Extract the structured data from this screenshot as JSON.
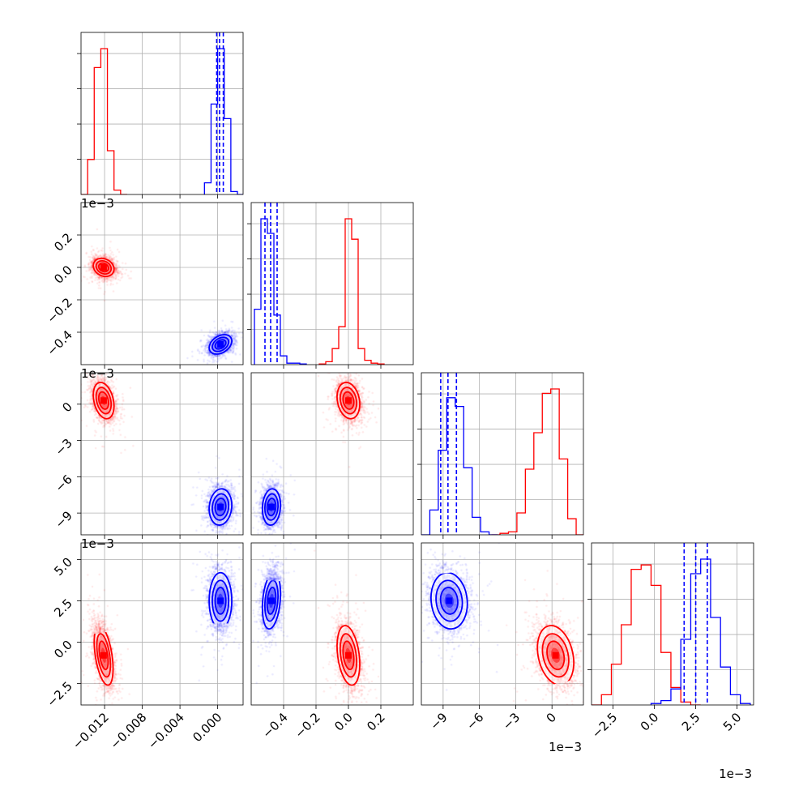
{
  "chart_data": {
    "type": "corner",
    "colors": {
      "run_a": "#ff0000",
      "run_b": "#0000ff"
    },
    "parameters": [
      {
        "range": [
          -0.0145,
          0.0027
        ],
        "ticks": [
          -0.012,
          -0.008,
          -0.004,
          0.0
        ],
        "tick_labels": [
          "−0.012",
          "−0.008",
          "−0.004",
          "0.000"
        ],
        "offset_label": ""
      },
      {
        "range": [
          -0.6,
          0.4
        ],
        "ticks": [
          -0.4,
          -0.2,
          0.0,
          0.2
        ],
        "tick_labels": [
          "−0.4",
          "−0.2",
          "0.0",
          "0.2"
        ],
        "offset_label": "1e−3"
      },
      {
        "range": [
          -10.8,
          2.6
        ],
        "ticks": [
          -9,
          -6,
          -3,
          0
        ],
        "tick_labels": [
          "−9",
          "−6",
          "−3",
          "0"
        ],
        "offset_label": "1e−3"
      },
      {
        "range": [
          -3.8,
          6.0
        ],
        "ticks": [
          -2.5,
          0.0,
          2.5,
          5.0
        ],
        "tick_labels": [
          "−2.5",
          "0.0",
          "2.5",
          "5.0"
        ],
        "offset_label": "1e−3"
      }
    ],
    "histograms": [
      {
        "series": [
          {
            "color": "#ff0000",
            "edges": [
              -0.0145,
              -0.0138,
              -0.0131,
              -0.0124,
              -0.0117,
              -0.011,
              -0.0103,
              -0.0096
            ],
            "counts": [
              0.0,
              0.24,
              0.87,
              1.0,
              0.3,
              0.03,
              0.0
            ]
          },
          {
            "color": "#0000ff",
            "edges": [
              -0.0014,
              -0.0007,
              0.0,
              0.0007,
              0.0014,
              0.0021,
              0.0028
            ],
            "counts": [
              0.08,
              0.62,
              1.0,
              0.52,
              0.02,
              0.0
            ]
          }
        ],
        "quantiles": {
          "color": "#0000ff",
          "values": [
            -0.0001,
            0.0002,
            0.0006
          ]
        }
      },
      {
        "series": [
          {
            "color": "#ff0000",
            "edges": [
              -0.18,
              -0.14,
              -0.1,
              -0.06,
              -0.02,
              0.02,
              0.06,
              0.1,
              0.14,
              0.18,
              0.22
            ],
            "counts": [
              0.005,
              0.02,
              0.11,
              0.26,
              1.0,
              0.86,
              0.11,
              0.03,
              0.01,
              0.005
            ]
          },
          {
            "color": "#0000ff",
            "edges": [
              -0.58,
              -0.54,
              -0.5,
              -0.46,
              -0.42,
              -0.38,
              -0.34,
              -0.3,
              -0.26
            ],
            "counts": [
              0.38,
              1.0,
              0.9,
              0.34,
              0.06,
              0.01,
              0.01,
              0.005
            ]
          }
        ],
        "quantiles": {
          "color": "#0000ff",
          "values": [
            -0.515,
            -0.48,
            -0.44
          ]
        }
      },
      {
        "series": [
          {
            "color": "#ff0000",
            "edges": [
              -5.0,
              -4.3,
              -3.6,
              -2.9,
              -2.2,
              -1.5,
              -0.8,
              -0.1,
              0.6,
              1.3,
              2.0,
              2.6
            ],
            "counts": [
              0.0,
              0.01,
              0.02,
              0.15,
              0.45,
              0.7,
              0.97,
              1.0,
              0.52,
              0.11,
              0.0
            ]
          },
          {
            "color": "#0000ff",
            "edges": [
              -10.8,
              -10.1,
              -9.4,
              -8.7,
              -8.0,
              -7.3,
              -6.6,
              -5.9,
              -5.2,
              -4.5
            ],
            "counts": [
              0.0,
              0.17,
              0.58,
              0.94,
              0.88,
              0.46,
              0.12,
              0.02,
              0.0
            ]
          }
        ],
        "quantiles": {
          "color": "#0000ff",
          "values": [
            -9.2,
            -8.6,
            -7.9
          ]
        }
      },
      {
        "series": [
          {
            "color": "#ff0000",
            "edges": [
              -3.8,
              -3.2,
              -2.6,
              -2.0,
              -1.4,
              -0.8,
              -0.2,
              0.4,
              1.0,
              1.6,
              2.2,
              2.8
            ],
            "counts": [
              0.0,
              0.07,
              0.28,
              0.55,
              0.93,
              0.96,
              0.82,
              0.36,
              0.12,
              0.02,
              0.0
            ]
          },
          {
            "color": "#0000ff",
            "edges": [
              -0.2,
              0.4,
              1.0,
              1.6,
              2.2,
              2.8,
              3.4,
              4.0,
              4.6,
              5.2,
              5.8
            ],
            "counts": [
              0.01,
              0.03,
              0.11,
              0.45,
              0.9,
              1.0,
              0.6,
              0.26,
              0.07,
              0.01
            ]
          }
        ],
        "quantiles": {
          "color": "#0000ff",
          "values": [
            1.8,
            2.5,
            3.2
          ]
        }
      }
    ],
    "pairs": [
      {
        "i": 1,
        "j": 0,
        "clusters": [
          {
            "color": "#ff0000",
            "mean": [
              -0.0121,
              0.0
            ],
            "sd": [
              0.00055,
              0.028
            ],
            "rho": -0.2
          },
          {
            "color": "#0000ff",
            "mean": [
              0.0003,
              -0.475
            ],
            "sd": [
              0.0006,
              0.03
            ],
            "rho": 0.35
          }
        ]
      },
      {
        "i": 2,
        "j": 0,
        "clusters": [
          {
            "color": "#ff0000",
            "mean": [
              -0.0121,
              0.3
            ],
            "sd": [
              0.00055,
              0.75
            ],
            "rho": -0.3
          },
          {
            "color": "#0000ff",
            "mean": [
              0.0003,
              -8.5
            ],
            "sd": [
              0.0006,
              0.75
            ],
            "rho": 0.1
          }
        ]
      },
      {
        "i": 2,
        "j": 1,
        "clusters": [
          {
            "color": "#ff0000",
            "mean": [
              0.0,
              0.3
            ],
            "sd": [
              0.035,
              0.75
            ],
            "rho": -0.2
          },
          {
            "color": "#0000ff",
            "mean": [
              -0.475,
              -8.5
            ],
            "sd": [
              0.028,
              0.75
            ],
            "rho": 0.1
          }
        ]
      },
      {
        "i": 3,
        "j": 0,
        "clusters": [
          {
            "color": "#ff0000",
            "mean": [
              -0.0121,
              -0.8
            ],
            "sd": [
              0.0005,
              0.9
            ],
            "rho": -0.45
          },
          {
            "color": "#0000ff",
            "mean": [
              0.0003,
              2.5
            ],
            "sd": [
              0.0006,
              0.85
            ],
            "rho": 0.0
          }
        ]
      },
      {
        "i": 3,
        "j": 1,
        "clusters": [
          {
            "color": "#ff0000",
            "mean": [
              0.0,
              -0.8
            ],
            "sd": [
              0.035,
              0.9
            ],
            "rho": -0.3
          },
          {
            "color": "#0000ff",
            "mean": [
              -0.475,
              2.5
            ],
            "sd": [
              0.028,
              0.85
            ],
            "rho": 0.25
          }
        ]
      },
      {
        "i": 3,
        "j": 2,
        "clusters": [
          {
            "color": "#ff0000",
            "mean": [
              0.3,
              -0.8
            ],
            "sd": [
              0.75,
              0.9
            ],
            "rho": -0.25
          },
          {
            "color": "#0000ff",
            "mean": [
              -8.5,
              2.5
            ],
            "sd": [
              0.75,
              0.85
            ],
            "rho": -0.1
          }
        ]
      }
    ],
    "grid": true
  }
}
